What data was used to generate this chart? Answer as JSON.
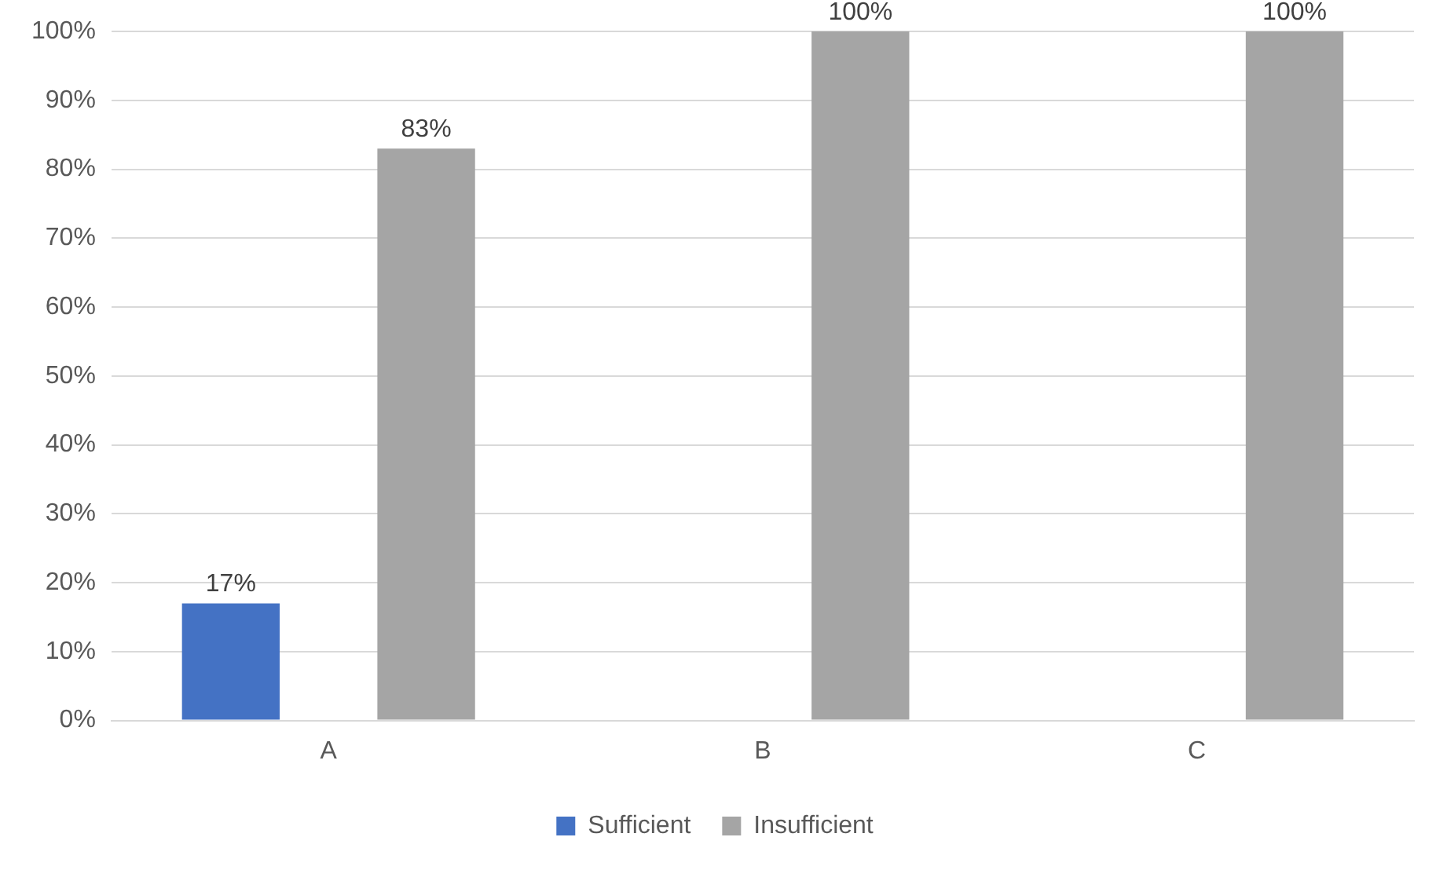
{
  "chart_data": {
    "type": "bar",
    "categories": [
      "A",
      "B",
      "C"
    ],
    "series": [
      {
        "name": "Sufficient",
        "color": "#4472c4",
        "values": [
          17,
          0,
          0
        ],
        "value_labels": [
          "17%",
          null,
          null
        ]
      },
      {
        "name": "Insufficient",
        "color": "#a5a5a5",
        "values": [
          83,
          100,
          100
        ],
        "value_labels": [
          "83%",
          "100%",
          "100%"
        ]
      }
    ],
    "ylim": [
      0,
      100
    ],
    "yticks": [
      {
        "value": 0,
        "label": "0%"
      },
      {
        "value": 10,
        "label": "10%"
      },
      {
        "value": 20,
        "label": "20%"
      },
      {
        "value": 30,
        "label": "30%"
      },
      {
        "value": 40,
        "label": "40%"
      },
      {
        "value": 50,
        "label": "50%"
      },
      {
        "value": 60,
        "label": "60%"
      },
      {
        "value": 70,
        "label": "70%"
      },
      {
        "value": 80,
        "label": "80%"
      },
      {
        "value": 90,
        "label": "90%"
      },
      {
        "value": 100,
        "label": "100%"
      }
    ],
    "grid": "y",
    "legend": "bottom"
  }
}
